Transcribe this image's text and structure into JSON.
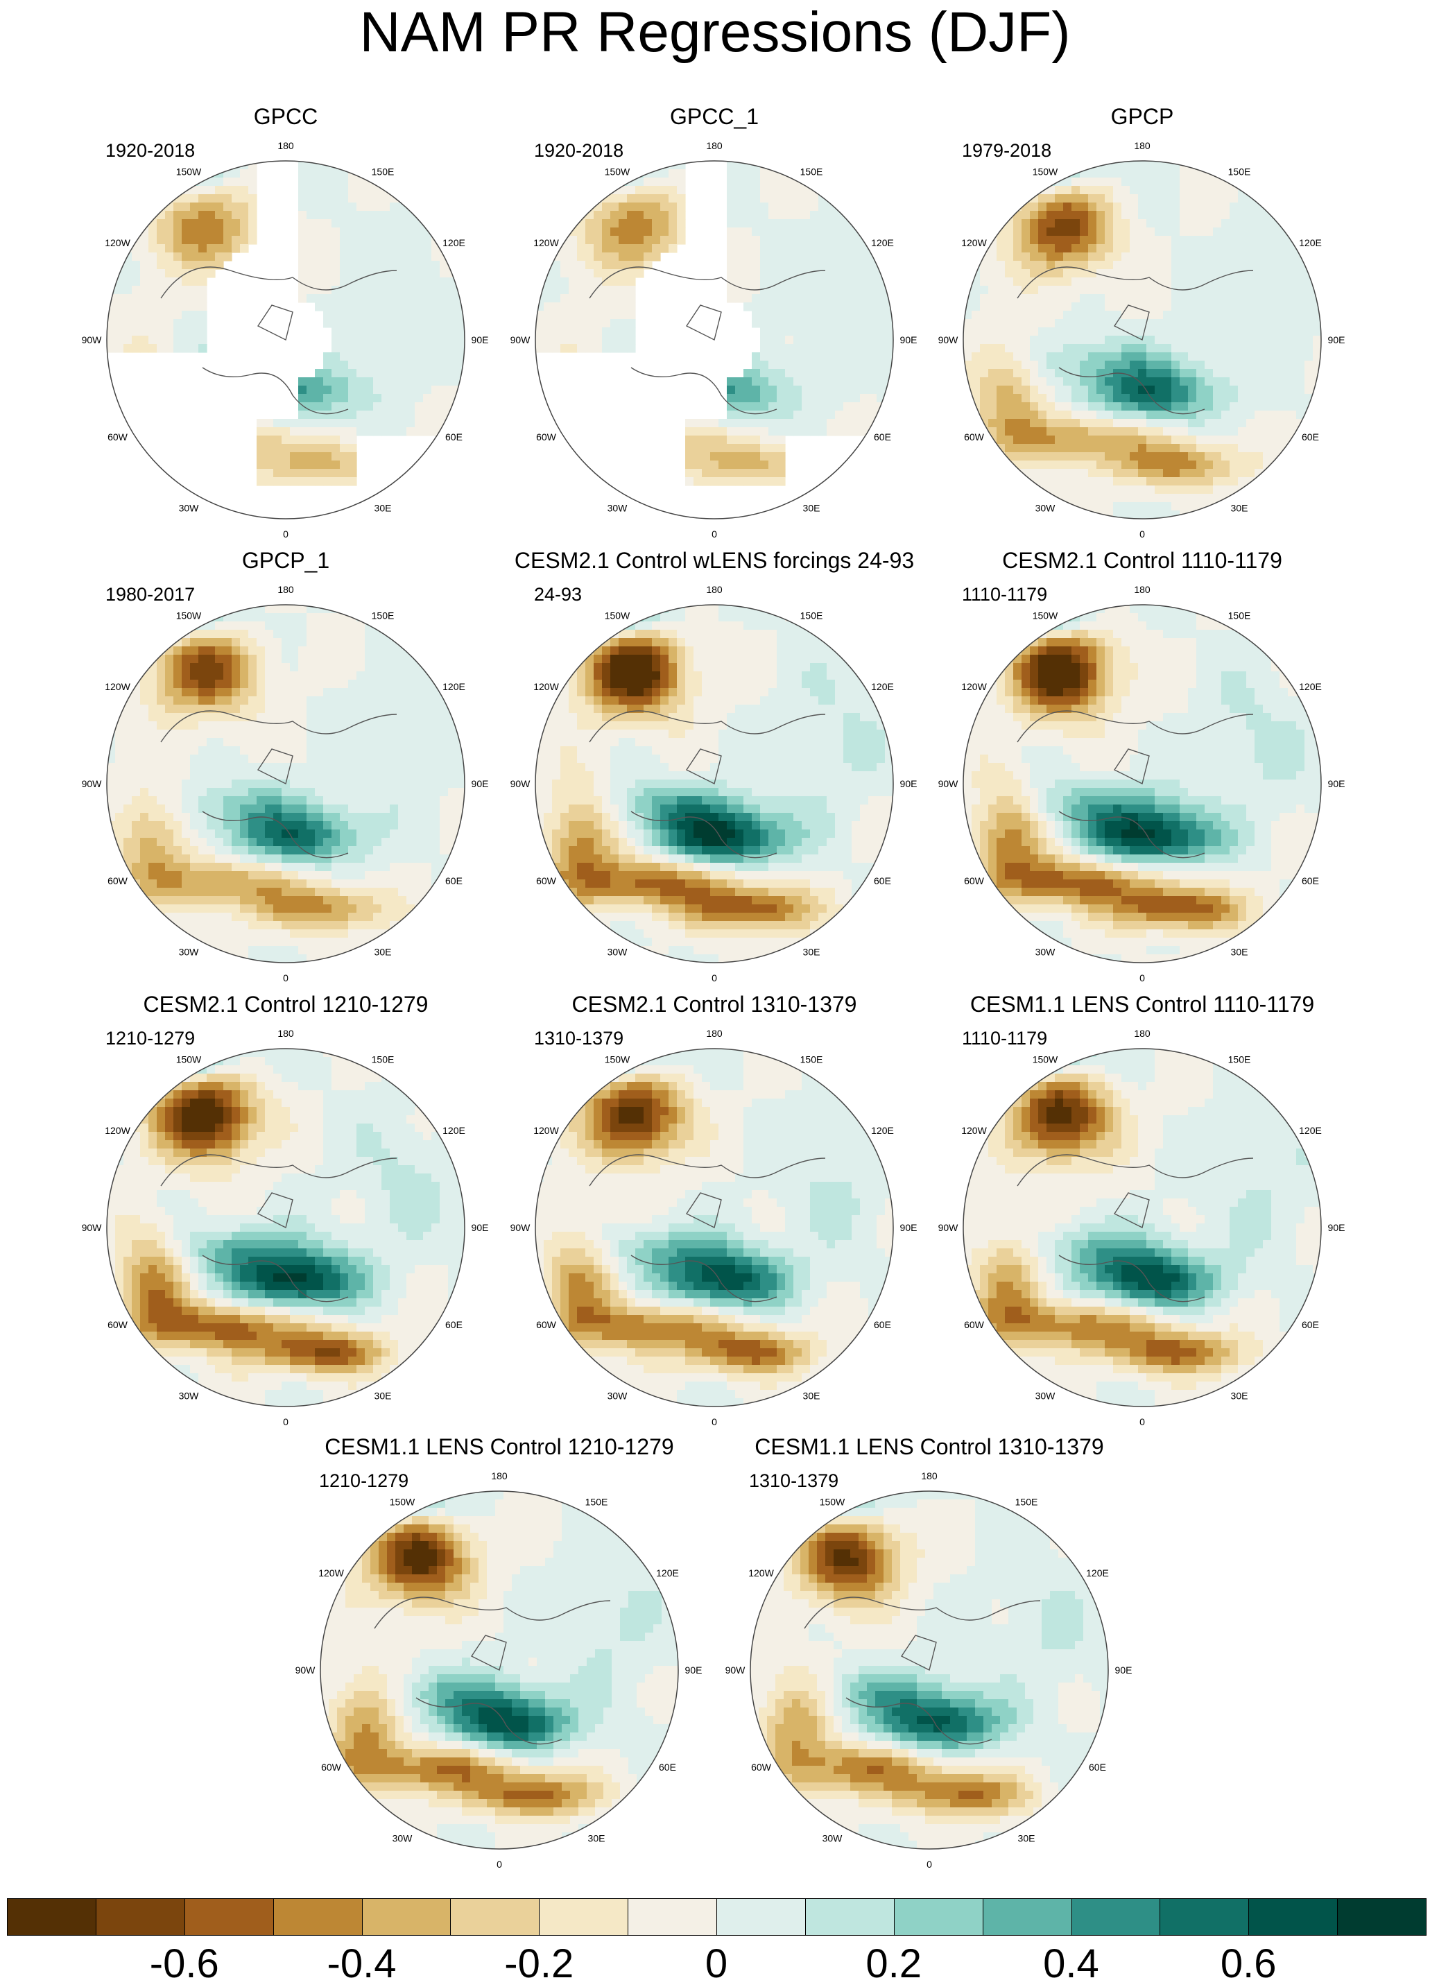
{
  "title": "NAM PR Regressions (DJF)",
  "lon_labels": [
    "180",
    "150E",
    "120E",
    "90E",
    "60E",
    "30E",
    "0",
    "30W",
    "60W",
    "90W",
    "120W",
    "150W"
  ],
  "chart_data": {
    "type": "heatmap",
    "projection": "north-polar-stereographic",
    "variable": "precipitation regression on NAM index",
    "season": "DJF",
    "panels": [
      {
        "title": "GPCC",
        "period": "1920-2018",
        "masked_ocean": true,
        "pattern_strength": 0.55
      },
      {
        "title": "GPCC_1",
        "period": "1920-2018",
        "masked_ocean": true,
        "pattern_strength": 0.55
      },
      {
        "title": "GPCP",
        "period": "1979-2018",
        "masked_ocean": false,
        "pattern_strength": 0.75
      },
      {
        "title": "GPCP_1",
        "period": "1980-2017",
        "masked_ocean": false,
        "pattern_strength": 0.75
      },
      {
        "title": "CESM2.1 Control wLENS forcings 24-93",
        "period": "24-93",
        "masked_ocean": false,
        "pattern_strength": 1.0
      },
      {
        "title": "CESM2.1 Control 1110-1179",
        "period": "1110-1179",
        "masked_ocean": false,
        "pattern_strength": 1.0
      },
      {
        "title": "CESM2.1 Control 1210-1279",
        "period": "1210-1279",
        "masked_ocean": false,
        "pattern_strength": 1.0
      },
      {
        "title": "CESM2.1 Control 1310-1379",
        "period": "1310-1379",
        "masked_ocean": false,
        "pattern_strength": 0.9
      },
      {
        "title": "CESM1.1 LENS Control 1110-1179",
        "period": "1110-1179",
        "masked_ocean": false,
        "pattern_strength": 0.9
      },
      {
        "title": "CESM1.1 LENS Control 1210-1279",
        "period": "1210-1279",
        "masked_ocean": false,
        "pattern_strength": 0.9
      },
      {
        "title": "CESM1.1 LENS Control 1310-1379",
        "period": "1310-1379",
        "masked_ocean": false,
        "pattern_strength": 0.85
      }
    ],
    "colorbar": {
      "levels": [
        -0.7,
        -0.6,
        -0.5,
        -0.4,
        -0.3,
        -0.2,
        -0.1,
        0,
        0.1,
        0.2,
        0.3,
        0.4,
        0.5,
        0.6,
        0.7
      ],
      "tick_labels": [
        "-0.6",
        "-0.4",
        "-0.2",
        "0",
        "0.2",
        "0.4",
        "0.6"
      ],
      "tick_values": [
        -0.6,
        -0.4,
        -0.2,
        0,
        0.2,
        0.4,
        0.6
      ],
      "colors": [
        "#543005",
        "#7b450d",
        "#a05e1c",
        "#bd8734",
        "#d8b468",
        "#ead19a",
        "#f5e8c6",
        "#f4f0e6",
        "#dfefec",
        "#bfe6df",
        "#8fd2c6",
        "#5eb4a8",
        "#2e8f86",
        "#117066",
        "#01544a",
        "#003c30"
      ]
    }
  }
}
